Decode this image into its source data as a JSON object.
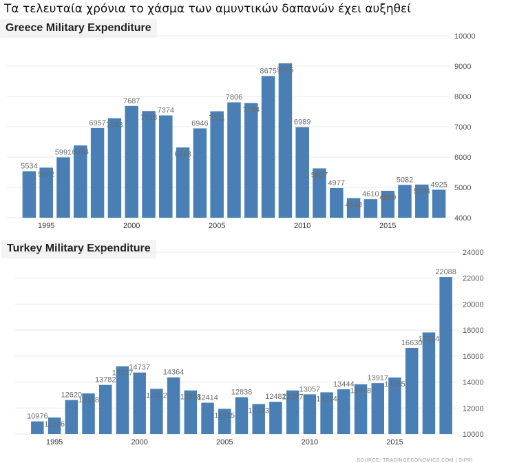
{
  "headline": "Τα τελευταία χρόνια το χάσμα των αμυντικών δαπανών έχει αυξηθεί",
  "source": "SOURCE: TRADINGECONOMICS.COM  |  SIPRI",
  "colors": {
    "bar": "#4a7fb5",
    "label": "#6b6b6b",
    "grid": "#e8e8e8",
    "axis": "#555555"
  },
  "chart_data": [
    {
      "type": "bar",
      "title": "Greece Military Expenditure",
      "xlabel": "",
      "ylabel": "",
      "x": [
        1994,
        1995,
        1996,
        1997,
        1998,
        1999,
        2000,
        2001,
        2002,
        2003,
        2004,
        2005,
        2006,
        2007,
        2008,
        2009,
        2010,
        2011,
        2012,
        2013,
        2014,
        2015,
        2016,
        2017,
        2018
      ],
      "values": [
        5534,
        5652,
        5991,
        6384,
        6957,
        7283,
        7687,
        7518,
        7374,
        6318,
        6946,
        7511,
        7806,
        7784,
        8675,
        9095,
        6989,
        5627,
        4977,
        4648,
        4610,
        4889,
        5082,
        5094,
        4925
      ],
      "xticks": [
        1995,
        2000,
        2005,
        2010,
        2015
      ],
      "yticks": [
        4000,
        5000,
        6000,
        7000,
        8000,
        9000,
        10000
      ],
      "ylim": [
        4000,
        10000
      ],
      "grid": true
    },
    {
      "type": "bar",
      "title": "Turkey Military Expenditure",
      "xlabel": "",
      "ylabel": "",
      "x": [
        1994,
        1995,
        1996,
        1997,
        1998,
        1999,
        2000,
        2001,
        2002,
        2003,
        2004,
        2005,
        2006,
        2007,
        2008,
        2009,
        2010,
        2011,
        2012,
        2013,
        2014,
        2015,
        2016,
        2017,
        2018
      ],
      "values": [
        10976,
        11276,
        12620,
        13128,
        13782,
        15217,
        14737,
        13482,
        14364,
        13358,
        12414,
        11935,
        12838,
        12313,
        12482,
        13357,
        13057,
        13214,
        13444,
        13838,
        13917,
        14355,
        16630,
        17824,
        22088
      ],
      "xticks": [
        1995,
        2000,
        2005,
        2010,
        2015
      ],
      "yticks": [
        10000,
        12000,
        14000,
        16000,
        18000,
        20000,
        22000,
        24000
      ],
      "ylim": [
        10000,
        24000
      ],
      "grid": true
    }
  ]
}
